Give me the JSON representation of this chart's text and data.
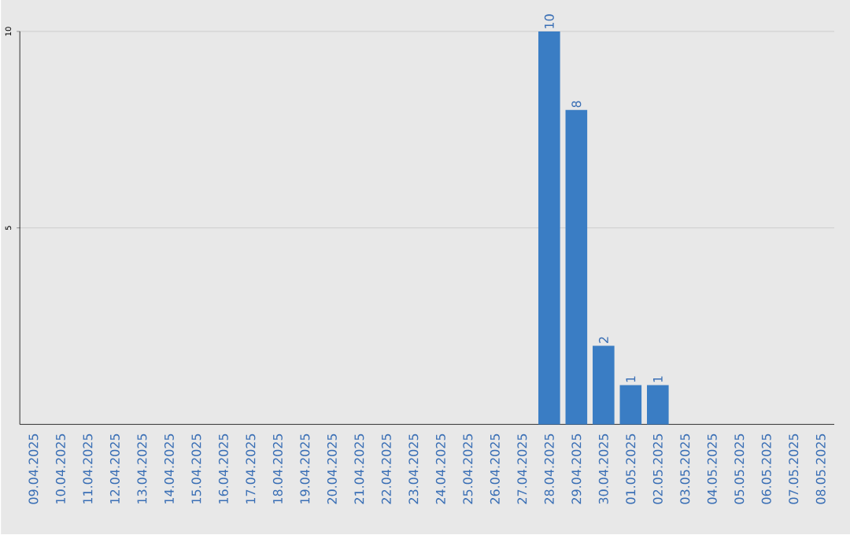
{
  "chart_data": {
    "type": "bar",
    "categories": [
      "09.04.2025",
      "10.04.2025",
      "11.04.2025",
      "12.04.2025",
      "13.04.2025",
      "14.04.2025",
      "15.04.2025",
      "16.04.2025",
      "17.04.2025",
      "18.04.2025",
      "19.04.2025",
      "20.04.2025",
      "21.04.2025",
      "22.04.2025",
      "23.04.2025",
      "24.04.2025",
      "25.04.2025",
      "26.04.2025",
      "27.04.2025",
      "28.04.2025",
      "29.04.2025",
      "30.04.2025",
      "01.05.2025",
      "02.05.2025",
      "03.05.2025",
      "04.05.2025",
      "05.05.2025",
      "06.05.2025",
      "07.05.2025",
      "08.05.2025"
    ],
    "values": [
      0,
      0,
      0,
      0,
      0,
      0,
      0,
      0,
      0,
      0,
      0,
      0,
      0,
      0,
      0,
      0,
      0,
      0,
      0,
      10,
      8,
      2,
      1,
      1,
      0,
      0,
      0,
      0,
      0,
      0
    ],
    "value_labels": [
      null,
      null,
      null,
      null,
      null,
      null,
      null,
      null,
      null,
      null,
      null,
      null,
      null,
      null,
      null,
      null,
      null,
      null,
      null,
      "10",
      "8",
      "2",
      "1",
      "1",
      null,
      null,
      null,
      null,
      null,
      null
    ],
    "color": "#3a7dc4",
    "ylim": [
      0,
      10
    ],
    "yticks": [
      5,
      10
    ],
    "grid": "y"
  }
}
